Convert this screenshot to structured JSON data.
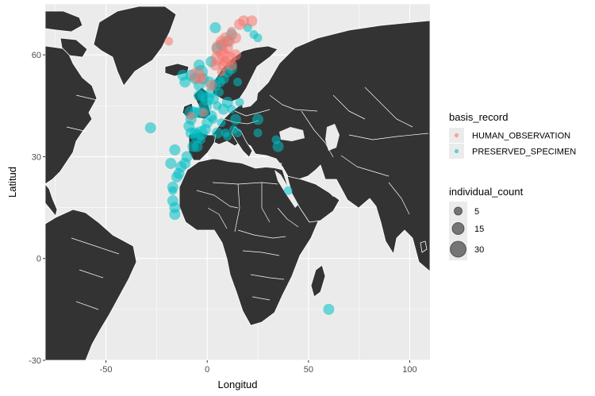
{
  "chart_data": {
    "type": "scatter",
    "title": "",
    "xlabel": "Longitud",
    "ylabel": "Latitud",
    "xlim": [
      -80,
      110
    ],
    "ylim": [
      -30,
      75
    ],
    "xticks": [
      -50,
      0,
      50,
      100
    ],
    "yticks": [
      -30,
      0,
      30,
      60
    ],
    "grid": true,
    "background": "map of the world (Europe, Africa, Middle East, Greenland, part of the Americas)",
    "colors": {
      "panel": "#ebebeb",
      "grid": "#ffffff",
      "land": "#333333",
      "border": "#ffffff",
      "HUMAN_OBSERVATION": "#f8766d",
      "PRESERVED_SPECIMEN": "#00bfc4"
    },
    "legend": {
      "placement": "right",
      "color_title": "basis_record",
      "color_entries": [
        "HUMAN_OBSERVATION",
        "PRESERVED_SPECIMEN"
      ],
      "size_title": "individual_count",
      "size_entries": [
        5,
        15,
        30
      ]
    },
    "series": [
      {
        "name": "PRESERVED_SPECIMEN",
        "points": [
          {
            "x": -28,
            "y": 38.5,
            "size": 3
          },
          {
            "x": 60,
            "y": -15,
            "size": 3
          },
          {
            "x": 40,
            "y": 20,
            "size": 2
          },
          {
            "x": 35,
            "y": 33,
            "size": 3
          },
          {
            "x": 34,
            "y": 35,
            "size": 2
          },
          {
            "x": 25,
            "y": 41,
            "size": 3
          },
          {
            "x": 25,
            "y": 37,
            "size": 2
          },
          {
            "x": 15,
            "y": 37,
            "size": 2
          },
          {
            "x": 13,
            "y": 38,
            "size": 2
          },
          {
            "x": 14,
            "y": 41,
            "size": 3
          },
          {
            "x": 12,
            "y": 44,
            "size": 2
          },
          {
            "x": 16,
            "y": 46,
            "size": 2
          },
          {
            "x": 10,
            "y": 46,
            "size": 3
          },
          {
            "x": 8,
            "y": 44,
            "size": 3
          },
          {
            "x": 7,
            "y": 40,
            "size": 2
          },
          {
            "x": 9,
            "y": 37,
            "size": 2
          },
          {
            "x": 5,
            "y": 37,
            "size": 3
          },
          {
            "x": 3,
            "y": 41,
            "size": 2
          },
          {
            "x": 2,
            "y": 42,
            "size": 3
          },
          {
            "x": 0,
            "y": 40,
            "size": 3
          },
          {
            "x": -1,
            "y": 38,
            "size": 3
          },
          {
            "x": -3,
            "y": 37,
            "size": 4
          },
          {
            "x": -5,
            "y": 36,
            "size": 4
          },
          {
            "x": -6,
            "y": 37,
            "size": 3
          },
          {
            "x": -8,
            "y": 37,
            "size": 3
          },
          {
            "x": -9,
            "y": 39,
            "size": 3
          },
          {
            "x": -8,
            "y": 41,
            "size": 3
          },
          {
            "x": -8,
            "y": 43,
            "size": 4
          },
          {
            "x": -6,
            "y": 43,
            "size": 3
          },
          {
            "x": -4,
            "y": 43,
            "size": 3
          },
          {
            "x": -2,
            "y": 43,
            "size": 3
          },
          {
            "x": -1,
            "y": 45,
            "size": 4
          },
          {
            "x": 0,
            "y": 47,
            "size": 4
          },
          {
            "x": -2,
            "y": 48,
            "size": 3
          },
          {
            "x": -4,
            "y": 48,
            "size": 3
          },
          {
            "x": 2,
            "y": 49,
            "size": 3
          },
          {
            "x": 4,
            "y": 51,
            "size": 3
          },
          {
            "x": 6,
            "y": 52,
            "size": 3
          },
          {
            "x": 8,
            "y": 53,
            "size": 3
          },
          {
            "x": 10,
            "y": 55,
            "size": 3
          },
          {
            "x": 12,
            "y": 56,
            "size": 3
          },
          {
            "x": -4,
            "y": 51,
            "size": 3
          },
          {
            "x": -6,
            "y": 53,
            "size": 3
          },
          {
            "x": -8,
            "y": 54,
            "size": 3
          },
          {
            "x": -2,
            "y": 53,
            "size": 3
          },
          {
            "x": -3,
            "y": 55,
            "size": 4
          },
          {
            "x": -4,
            "y": 57,
            "size": 3
          },
          {
            "x": -11,
            "y": 52,
            "size": 3
          },
          {
            "x": -12,
            "y": 54,
            "size": 3
          },
          {
            "x": 1,
            "y": 52,
            "size": 3
          },
          {
            "x": 3,
            "y": 47,
            "size": 3
          },
          {
            "x": 5,
            "y": 45,
            "size": 2
          },
          {
            "x": 6,
            "y": 49,
            "size": 2
          },
          {
            "x": 5,
            "y": 62,
            "size": 3
          },
          {
            "x": 7,
            "y": 63,
            "size": 3
          },
          {
            "x": 10,
            "y": 64,
            "size": 3
          },
          {
            "x": 12,
            "y": 66,
            "size": 3
          },
          {
            "x": 4,
            "y": 68,
            "size": 3
          },
          {
            "x": 2,
            "y": 58,
            "size": 3
          },
          {
            "x": 20,
            "y": 68,
            "size": 2
          },
          {
            "x": 23,
            "y": 66,
            "size": 2
          },
          {
            "x": 25,
            "y": 65,
            "size": 2
          },
          {
            "x": 15,
            "y": 52,
            "size": 2
          },
          {
            "x": -10,
            "y": 30,
            "size": 3
          },
          {
            "x": -11,
            "y": 28,
            "size": 3
          },
          {
            "x": -13,
            "y": 27,
            "size": 3
          },
          {
            "x": -14,
            "y": 25,
            "size": 3
          },
          {
            "x": -15,
            "y": 24,
            "size": 3
          },
          {
            "x": -17,
            "y": 21,
            "size": 3
          },
          {
            "x": -17,
            "y": 17,
            "size": 3
          },
          {
            "x": -16,
            "y": 15,
            "size": 3
          },
          {
            "x": -16,
            "y": 13,
            "size": 3
          },
          {
            "x": -17,
            "y": 20,
            "size": 2
          },
          {
            "x": -18,
            "y": 28,
            "size": 3
          },
          {
            "x": -16,
            "y": 32,
            "size": 3
          },
          {
            "x": -7,
            "y": 33,
            "size": 3
          },
          {
            "x": -5,
            "y": 33,
            "size": 3
          },
          {
            "x": -3,
            "y": 35,
            "size": 2
          },
          {
            "x": 10,
            "y": 36,
            "size": 2
          }
        ]
      },
      {
        "name": "HUMAN_OBSERVATION",
        "points": [
          {
            "x": -19,
            "y": 64,
            "size": 2
          },
          {
            "x": -5,
            "y": 54,
            "size": 5
          },
          {
            "x": -3,
            "y": 53,
            "size": 3
          },
          {
            "x": 2,
            "y": 51,
            "size": 3
          },
          {
            "x": 5,
            "y": 59,
            "size": 4
          },
          {
            "x": 6,
            "y": 62,
            "size": 5
          },
          {
            "x": 8,
            "y": 60,
            "size": 4
          },
          {
            "x": 9,
            "y": 58,
            "size": 3
          },
          {
            "x": 10,
            "y": 62,
            "size": 3
          },
          {
            "x": 11,
            "y": 59,
            "size": 4
          },
          {
            "x": 12,
            "y": 57,
            "size": 3
          },
          {
            "x": 7,
            "y": 64,
            "size": 3
          },
          {
            "x": 9,
            "y": 65,
            "size": 3
          },
          {
            "x": 11,
            "y": 64,
            "size": 3
          },
          {
            "x": 14,
            "y": 65,
            "size": 3
          },
          {
            "x": 16,
            "y": 69,
            "size": 3
          },
          {
            "x": 18,
            "y": 70,
            "size": 3
          },
          {
            "x": 22,
            "y": 70,
            "size": 3
          },
          {
            "x": 12,
            "y": 67,
            "size": 2
          },
          {
            "x": 8,
            "y": 57,
            "size": 3
          },
          {
            "x": 7,
            "y": 55,
            "size": 2
          },
          {
            "x": 4,
            "y": 57,
            "size": 3
          },
          {
            "x": -8,
            "y": 42,
            "size": 2
          },
          {
            "x": -2,
            "y": 43,
            "size": 2
          },
          {
            "x": 14,
            "y": 60,
            "size": 3
          }
        ]
      }
    ]
  }
}
